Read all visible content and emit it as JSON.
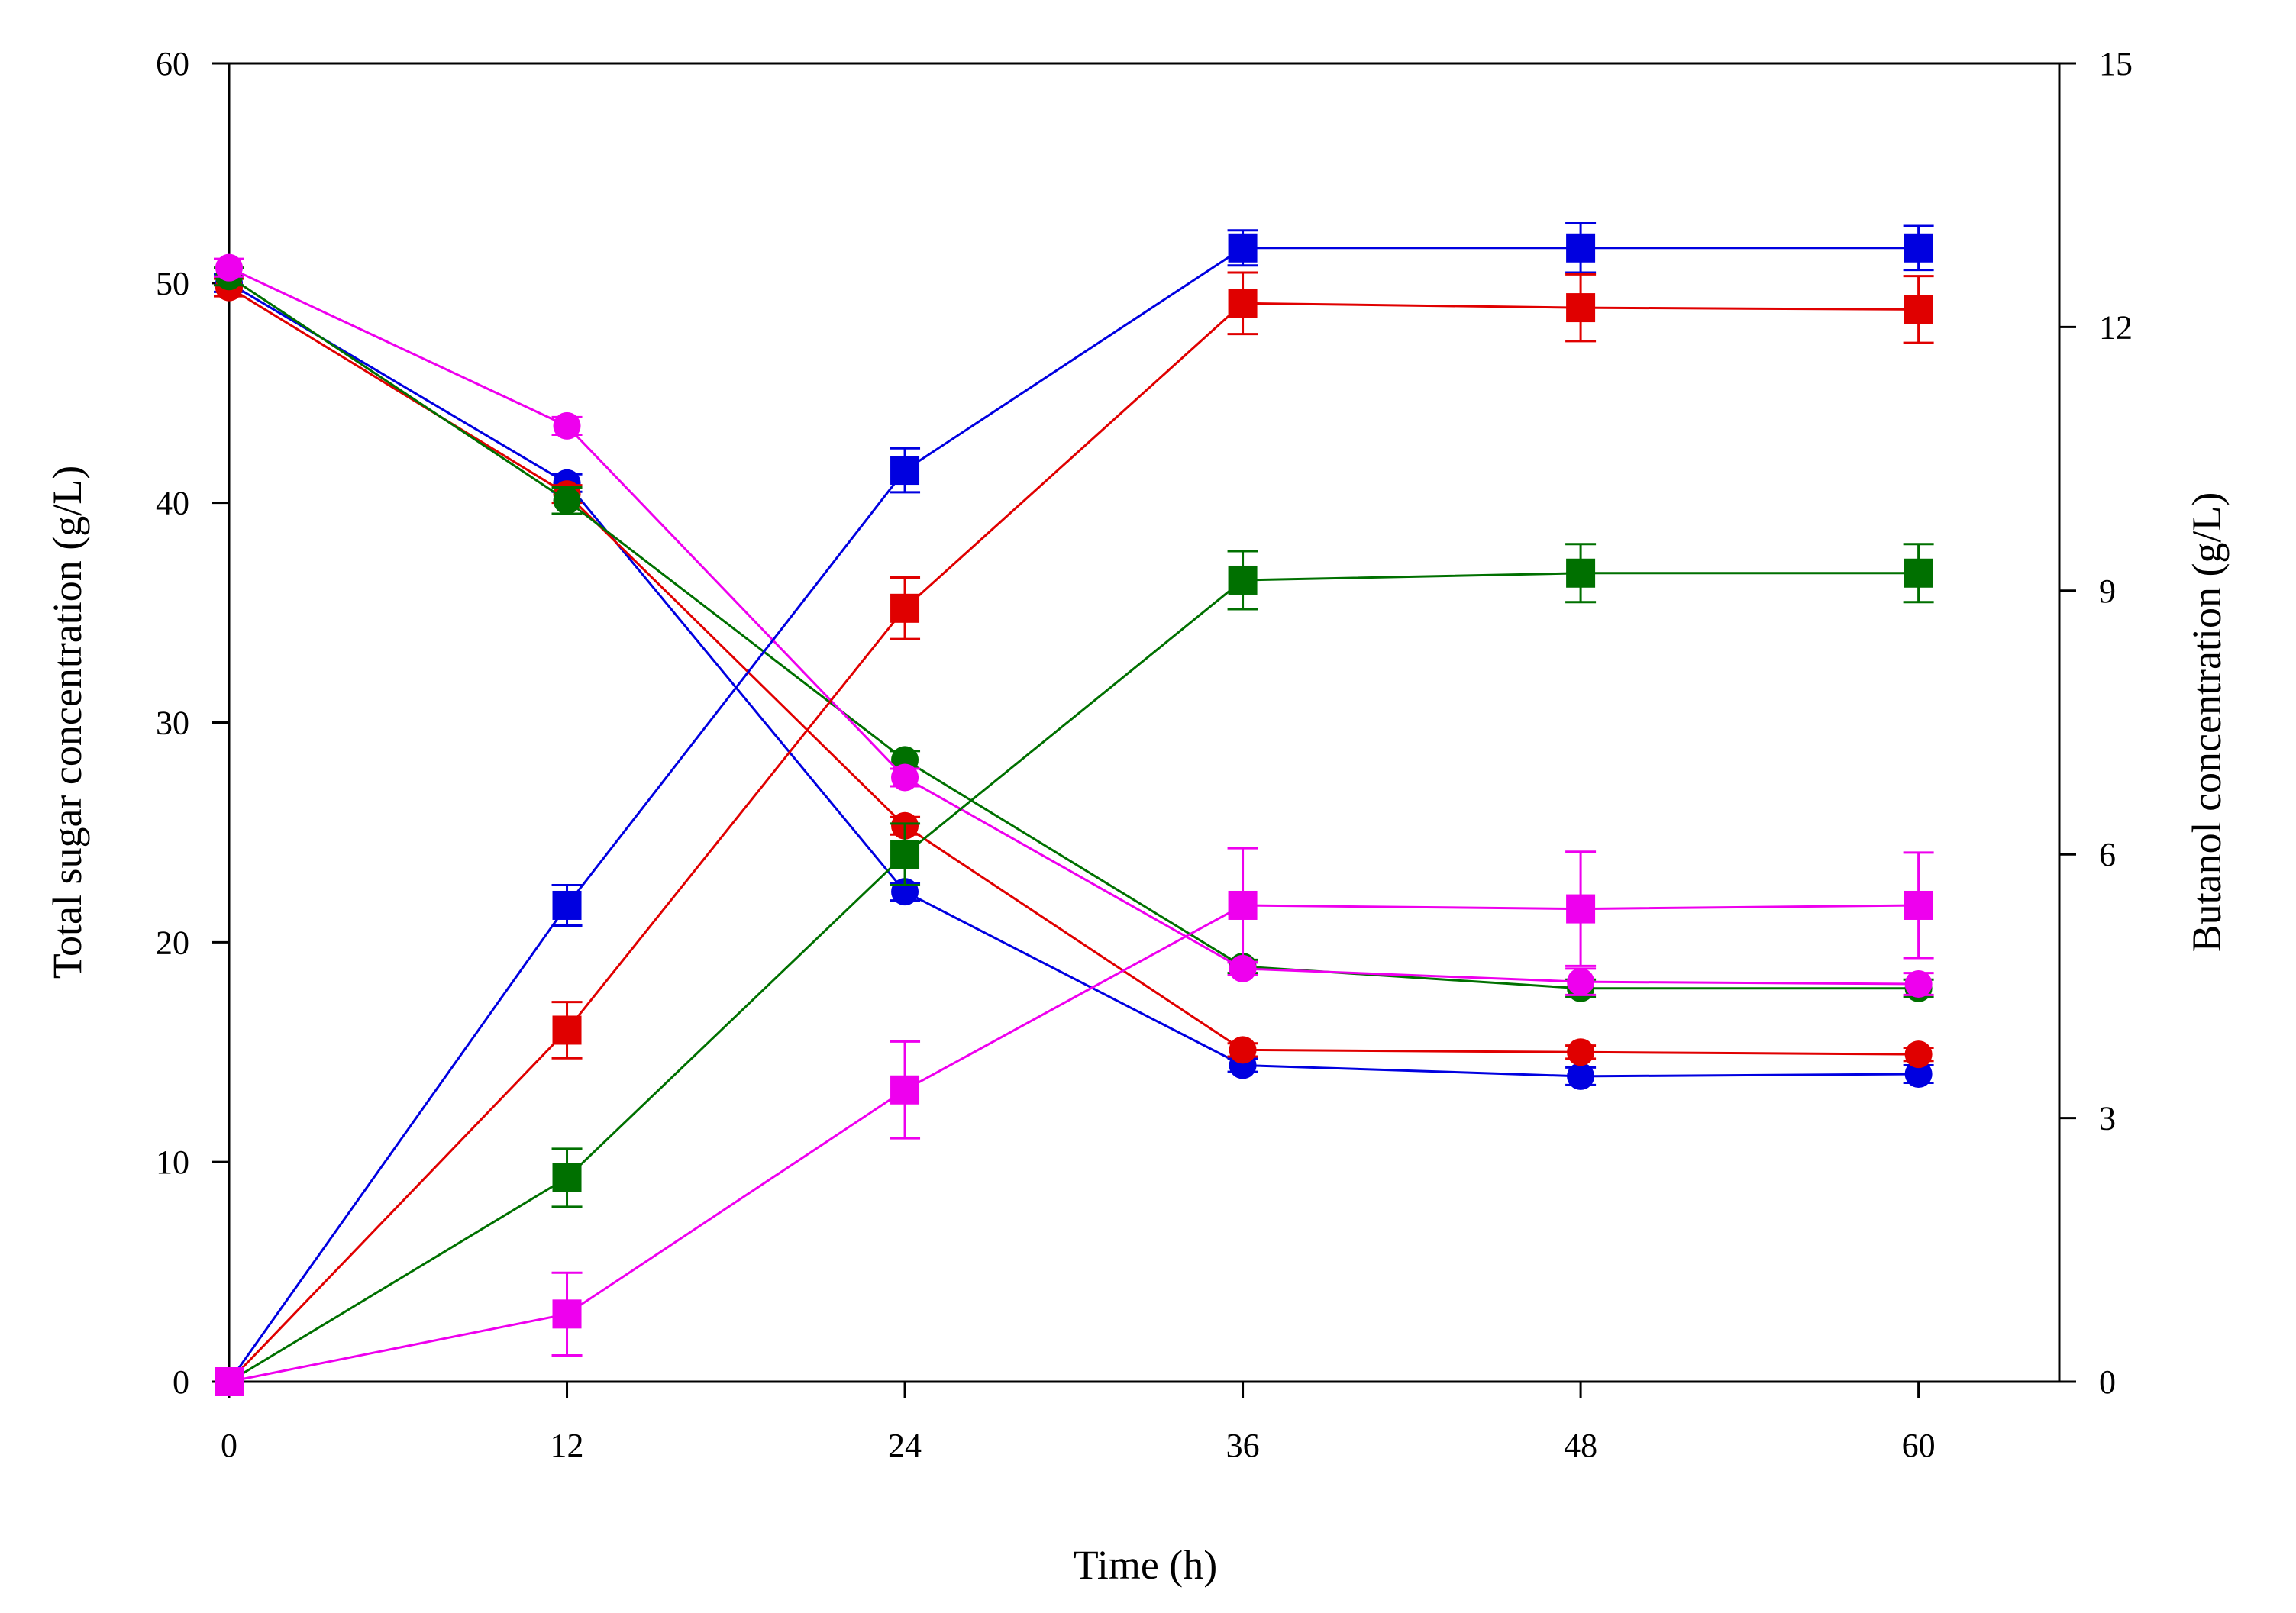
{
  "chart_data": {
    "type": "line",
    "title": "",
    "xlabel": "Time (h)",
    "ylabel_left": "Total sugar concentration (g/L)",
    "ylabel_right": "Butanol concentration (g/L)",
    "x": [
      0,
      12,
      24,
      36,
      48,
      60
    ],
    "xticks": [
      "0",
      "12",
      "24",
      "36",
      "48",
      "60"
    ],
    "xlim": [
      0,
      65
    ],
    "ylim_left": [
      0,
      60
    ],
    "yticks_left": [
      "0",
      "10",
      "20",
      "30",
      "40",
      "50",
      "60"
    ],
    "ylim_right": [
      0,
      15
    ],
    "yticks_right": [
      "0",
      "3",
      "6",
      "9",
      "12",
      "15"
    ],
    "grid": false,
    "series": [
      {
        "name": "Total sugar (blue)",
        "axis": "left",
        "marker": "circle",
        "color": "#0000e0",
        "values": [
          50.0,
          40.9,
          22.3,
          14.4,
          13.9,
          14.0
        ],
        "errors": [
          0.4,
          0.4,
          0.4,
          0.3,
          0.4,
          0.4
        ]
      },
      {
        "name": "Total sugar (red)",
        "axis": "left",
        "marker": "circle",
        "color": "#e00000",
        "values": [
          49.8,
          40.4,
          25.3,
          15.1,
          15.0,
          14.9
        ],
        "errors": [
          0.4,
          0.4,
          0.4,
          0.3,
          0.3,
          0.3
        ]
      },
      {
        "name": "Total sugar (green)",
        "axis": "left",
        "marker": "circle",
        "color": "#007000",
        "values": [
          50.3,
          40.1,
          28.3,
          18.9,
          17.9,
          17.9
        ],
        "errors": [
          0.4,
          0.6,
          0.4,
          0.3,
          0.4,
          0.4
        ]
      },
      {
        "name": "Total sugar (magenta)",
        "axis": "left",
        "marker": "circle",
        "color": "#ee00ee",
        "values": [
          50.7,
          43.5,
          27.5,
          18.8,
          18.2,
          18.1
        ],
        "errors": [
          0.4,
          0.4,
          0.4,
          0.3,
          0.6,
          0.5
        ]
      },
      {
        "name": "Butanol (blue)",
        "axis": "right",
        "marker": "square",
        "color": "#0000e0",
        "values": [
          0,
          5.42,
          10.37,
          12.9,
          12.9,
          12.9
        ],
        "errors": [
          0,
          0.23,
          0.25,
          0.2,
          0.28,
          0.25
        ]
      },
      {
        "name": "Butanol (red)",
        "axis": "right",
        "marker": "square",
        "color": "#e00000",
        "values": [
          0,
          4.0,
          8.8,
          12.27,
          12.22,
          12.2
        ],
        "errors": [
          0,
          0.32,
          0.35,
          0.35,
          0.38,
          0.38
        ]
      },
      {
        "name": "Butanol (green)",
        "axis": "right",
        "marker": "square",
        "color": "#007000",
        "values": [
          0,
          2.32,
          6.0,
          9.12,
          9.2,
          9.2
        ],
        "errors": [
          0,
          0.33,
          0.35,
          0.33,
          0.33,
          0.33
        ]
      },
      {
        "name": "Butanol (magenta)",
        "axis": "right",
        "marker": "square",
        "color": "#ee00ee",
        "values": [
          0,
          0.77,
          3.32,
          5.42,
          5.38,
          5.42
        ],
        "errors": [
          0,
          0.47,
          0.55,
          0.65,
          0.65,
          0.6
        ]
      }
    ]
  }
}
